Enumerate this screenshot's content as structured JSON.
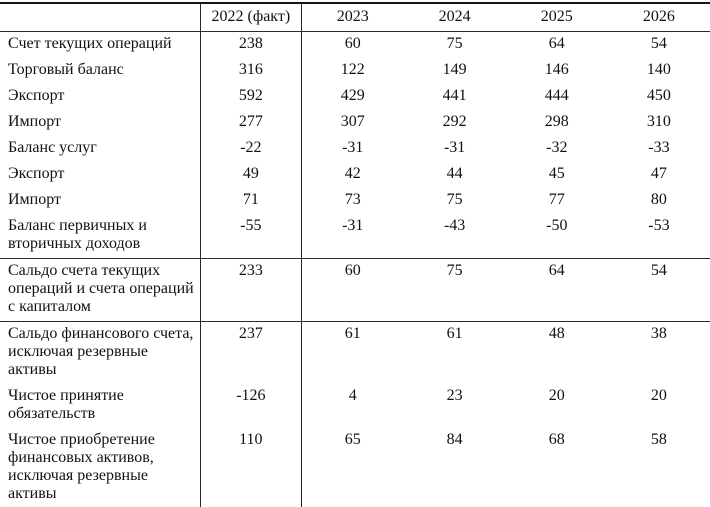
{
  "page": {
    "background": "#ffffff",
    "text_color": "#111111",
    "border_color": "#141414"
  },
  "table": {
    "header": {
      "corner": "",
      "columns": [
        "2022 (факт)",
        "2023",
        "2024",
        "2025",
        "2026"
      ]
    },
    "rows": [
      {
        "label": "Счет текущих операций",
        "values": [
          "238",
          "60",
          "75",
          "64",
          "54"
        ],
        "separator_above": false
      },
      {
        "label": "Торговый баланс",
        "values": [
          "316",
          "122",
          "149",
          "146",
          "140"
        ],
        "separator_above": false
      },
      {
        "label": "Экспорт",
        "values": [
          "592",
          "429",
          "441",
          "444",
          "450"
        ],
        "separator_above": false
      },
      {
        "label": "Импорт",
        "values": [
          "277",
          "307",
          "292",
          "298",
          "310"
        ],
        "separator_above": false
      },
      {
        "label": "Баланс услуг",
        "values": [
          "-22",
          "-31",
          "-31",
          "-32",
          "-33"
        ],
        "separator_above": false
      },
      {
        "label": "Экспорт",
        "values": [
          "49",
          "42",
          "44",
          "45",
          "47"
        ],
        "separator_above": false
      },
      {
        "label": "Импорт",
        "values": [
          "71",
          "73",
          "75",
          "77",
          "80"
        ],
        "separator_above": false
      },
      {
        "label": "Баланс первичных и вторичных доходов",
        "values": [
          "-55",
          "-31",
          "-43",
          "-50",
          "-53"
        ],
        "separator_above": false
      },
      {
        "label": "Сальдо счета текущих операций и счета операций с капиталом",
        "values": [
          "233",
          "60",
          "75",
          "64",
          "54"
        ],
        "separator_above": true
      },
      {
        "label": "Сальдо финансового счета, исключая резервные активы",
        "values": [
          "237",
          "61",
          "61",
          "48",
          "38"
        ],
        "separator_above": true
      },
      {
        "label": "Чистое принятие обязательств",
        "values": [
          "-126",
          "4",
          "23",
          "20",
          "20"
        ],
        "separator_above": false
      },
      {
        "label": "Чистое приобретение финансовых активов, исключая резервные активы",
        "values": [
          "110",
          "65",
          "84",
          "68",
          "58"
        ],
        "separator_above": false
      }
    ]
  }
}
